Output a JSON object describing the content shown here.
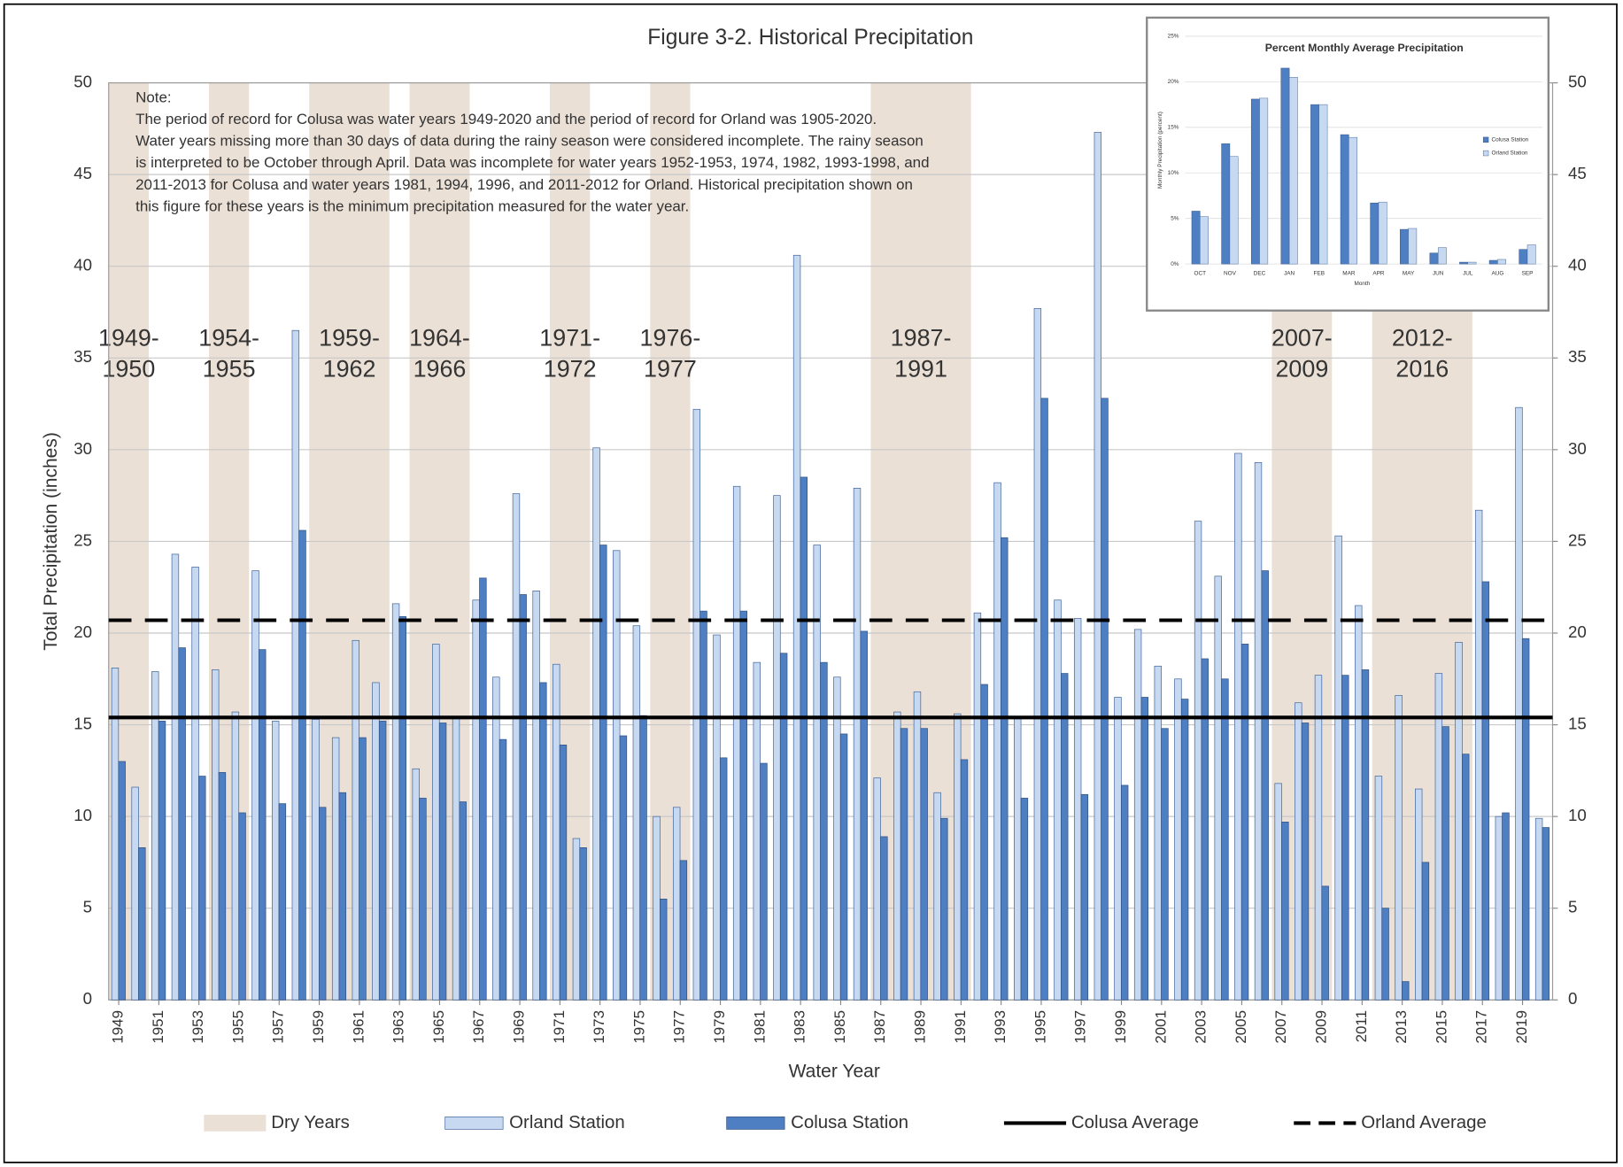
{
  "chart_data": [
    {
      "type": "bar",
      "title": "Figure 3-2. Historical Precipitation",
      "y_label": "Total Precipitation (inches)",
      "x_label": "Water Year",
      "note": [
        "Note:",
        "The period of record for Colusa was water years 1949-2020 and the period of record for Orland was 1905-2020.",
        "Water years missing more than 30 days of data during the rainy season were considered incomplete. The rainy season",
        "is interpreted to be October through April. Data was incomplete for water years 1952-1953, 1974, 1982, 1993-1998, and",
        "2011-2013 for Colusa and water years 1981, 1994, 1996, and 2011-2012 for Orland. Historical precipitation shown on",
        "this figure for these years is the minimum precipitation measured for the water year."
      ],
      "x": [
        1949,
        1950,
        1951,
        1952,
        1953,
        1954,
        1955,
        1956,
        1957,
        1958,
        1959,
        1960,
        1961,
        1962,
        1963,
        1964,
        1965,
        1966,
        1967,
        1968,
        1969,
        1970,
        1971,
        1972,
        1973,
        1974,
        1975,
        1976,
        1977,
        1978,
        1979,
        1980,
        1981,
        1982,
        1983,
        1984,
        1985,
        1986,
        1987,
        1988,
        1989,
        1990,
        1991,
        1992,
        1993,
        1994,
        1995,
        1996,
        1997,
        1998,
        1999,
        2000,
        2001,
        2002,
        2003,
        2004,
        2005,
        2006,
        2007,
        2008,
        2009,
        2010,
        2011,
        2012,
        2013,
        2014,
        2015,
        2016,
        2017,
        2018,
        2019,
        2020
      ],
      "xlim": [
        1948.5,
        2020.5
      ],
      "xticks": [
        1949,
        1951,
        1953,
        1955,
        1957,
        1959,
        1961,
        1963,
        1965,
        1967,
        1969,
        1971,
        1973,
        1975,
        1977,
        1979,
        1981,
        1983,
        1985,
        1987,
        1989,
        1991,
        1993,
        1995,
        1997,
        1999,
        2001,
        2003,
        2005,
        2007,
        2009,
        2011,
        2013,
        2015,
        2017,
        2019
      ],
      "series": [
        {
          "name": "Orland Station",
          "color": "#c6d9f1",
          "edge": "#41649a",
          "values": [
            18.1,
            11.6,
            17.9,
            24.3,
            23.6,
            18.0,
            15.7,
            23.4,
            15.2,
            36.5,
            15.3,
            14.3,
            19.6,
            17.3,
            21.6,
            12.6,
            19.4,
            15.4,
            21.8,
            17.6,
            27.6,
            22.3,
            18.3,
            8.8,
            30.1,
            24.5,
            20.4,
            10.0,
            10.5,
            32.2,
            19.9,
            28.0,
            18.4,
            27.5,
            40.6,
            24.8,
            17.6,
            27.9,
            12.1,
            15.7,
            16.8,
            11.3,
            15.6,
            21.1,
            28.2,
            15.4,
            37.7,
            21.8,
            20.8,
            47.3,
            16.5,
            20.2,
            18.2,
            17.5,
            26.1,
            23.1,
            29.8,
            29.3,
            11.8,
            16.2,
            17.7,
            25.3,
            21.5,
            12.2,
            16.6,
            11.5,
            17.8,
            19.5,
            26.7,
            10.0,
            32.3,
            9.9
          ]
        },
        {
          "name": "Colusa Station",
          "color": "#4f7fc3",
          "edge": "#2f4f80",
          "values": [
            13.0,
            8.3,
            15.2,
            19.2,
            12.2,
            12.4,
            10.2,
            19.1,
            10.7,
            25.6,
            10.5,
            11.3,
            14.3,
            15.2,
            20.9,
            11.0,
            15.1,
            10.8,
            23.0,
            14.2,
            22.1,
            17.3,
            13.9,
            8.3,
            24.8,
            14.4,
            15.5,
            5.5,
            7.6,
            21.2,
            13.2,
            21.2,
            12.9,
            18.9,
            28.5,
            18.4,
            14.5,
            20.1,
            8.9,
            14.8,
            14.8,
            9.9,
            13.1,
            17.2,
            25.2,
            11.0,
            32.8,
            17.8,
            11.2,
            32.8,
            11.7,
            16.5,
            14.8,
            16.4,
            18.6,
            17.5,
            19.4,
            23.4,
            9.7,
            15.1,
            6.2,
            17.7,
            18.0,
            5.0,
            1.0,
            7.5,
            14.9,
            13.4,
            22.8,
            10.2,
            19.7,
            9.4
          ]
        }
      ],
      "lines": [
        {
          "name": "Colusa Average",
          "value": 15.4,
          "color": "#000000",
          "style": "solid"
        },
        {
          "name": "Orland Average",
          "value": 20.7,
          "color": "#000000",
          "style": "dashed"
        }
      ],
      "dry_years_name": "Dry Years",
      "dry_color": "#ebe0d6",
      "dry_years": [
        {
          "label": [
            "1949-",
            "1950"
          ],
          "start": 1949,
          "end": 1950
        },
        {
          "label": [
            "1954-",
            "1955"
          ],
          "start": 1954,
          "end": 1955
        },
        {
          "label": [
            "1959-",
            "1962"
          ],
          "start": 1959,
          "end": 1962
        },
        {
          "label": [
            "1964-",
            "1966"
          ],
          "start": 1964,
          "end": 1966
        },
        {
          "label": [
            "1971-",
            "1972"
          ],
          "start": 1971,
          "end": 1972
        },
        {
          "label": [
            "1976-",
            "1977"
          ],
          "start": 1976,
          "end": 1977
        },
        {
          "label": [
            "1987-",
            "1991"
          ],
          "start": 1987,
          "end": 1991
        },
        {
          "label": [
            "2007-",
            "2009"
          ],
          "start": 2007,
          "end": 2009
        },
        {
          "label": [
            "2012-",
            "2016"
          ],
          "start": 2012,
          "end": 2016
        }
      ],
      "ylim": [
        0,
        50
      ],
      "yticks": [
        0,
        5,
        10,
        15,
        20,
        25,
        30,
        35,
        40,
        45,
        50
      ],
      "y2lim": [
        0,
        50
      ],
      "y2ticks": [
        0,
        5,
        10,
        15,
        20,
        25,
        30,
        35,
        40,
        45,
        50
      ],
      "grid": true,
      "legend": "bottom"
    },
    {
      "type": "bar",
      "title": "Percent Monthly Average Precipitation",
      "y_label": "Monthly Precipitation (percent)",
      "x_label": "Month",
      "categories": [
        "OCT",
        "NOV",
        "DEC",
        "JAN",
        "FEB",
        "MAR",
        "APR",
        "MAY",
        "JUN",
        "JUL",
        "AUG",
        "SEP"
      ],
      "series": [
        {
          "name": "Colusa Station",
          "color": "#4f7fc3",
          "edge": "#2f4f80",
          "values": [
            5.8,
            13.2,
            18.1,
            21.5,
            17.5,
            14.2,
            6.7,
            3.8,
            1.2,
            0.2,
            0.4,
            1.6
          ]
        },
        {
          "name": "Orland Station",
          "color": "#c6d9f1",
          "edge": "#41649a",
          "values": [
            5.2,
            11.8,
            18.2,
            20.5,
            17.5,
            13.9,
            6.8,
            3.9,
            1.8,
            0.2,
            0.5,
            2.1
          ]
        }
      ],
      "ylim": [
        0,
        25
      ],
      "yticks": [
        {
          "value": 0,
          "label": "0%"
        },
        {
          "value": 5,
          "label": "5%"
        },
        {
          "value": 10,
          "label": "10%"
        },
        {
          "value": 15,
          "label": "15%"
        },
        {
          "value": 20,
          "label": "20%"
        },
        {
          "value": 25,
          "label": "25%"
        }
      ],
      "grid": true,
      "legend": "right"
    }
  ]
}
